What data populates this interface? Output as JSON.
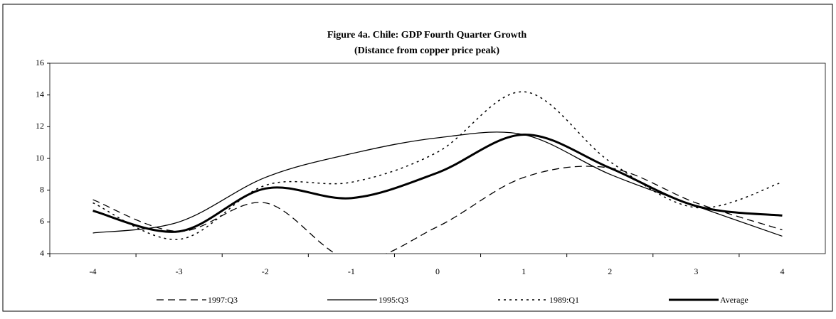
{
  "chart_data": {
    "type": "line",
    "title": "Figure 4a. Chile: GDP Fourth Quarter Growth",
    "subtitle": "(Distance from copper price peak)",
    "categories": [
      "-4",
      "-3",
      "-2",
      "-1",
      "0",
      "1",
      "2",
      "3",
      "4"
    ],
    "series": [
      {
        "name": "1997:Q3",
        "color": "#000000",
        "dash": "10,6",
        "width": 1.3,
        "values": [
          7.4,
          5.4,
          7.2,
          3.6,
          5.7,
          8.8,
          9.4,
          7.2,
          5.5
        ]
      },
      {
        "name": "1995:Q3",
        "color": "#000000",
        "dash": "none",
        "width": 1.3,
        "values": [
          5.3,
          6.0,
          8.8,
          10.3,
          11.3,
          11.5,
          9.0,
          7.0,
          5.1
        ]
      },
      {
        "name": "1989:Q1",
        "color": "#000000",
        "dash": "3,5",
        "width": 1.5,
        "values": [
          7.2,
          4.9,
          8.3,
          8.5,
          10.4,
          14.2,
          9.8,
          6.9,
          8.5
        ]
      },
      {
        "name": "Average",
        "color": "#000000",
        "dash": "none",
        "width": 3,
        "values": [
          6.7,
          5.4,
          8.1,
          7.5,
          9.1,
          11.5,
          9.4,
          7.0,
          6.4
        ]
      }
    ],
    "ylim": [
      4,
      16
    ],
    "yticks": [
      4,
      6,
      8,
      10,
      12,
      14,
      16
    ],
    "grid": false,
    "legend": "bottom"
  }
}
